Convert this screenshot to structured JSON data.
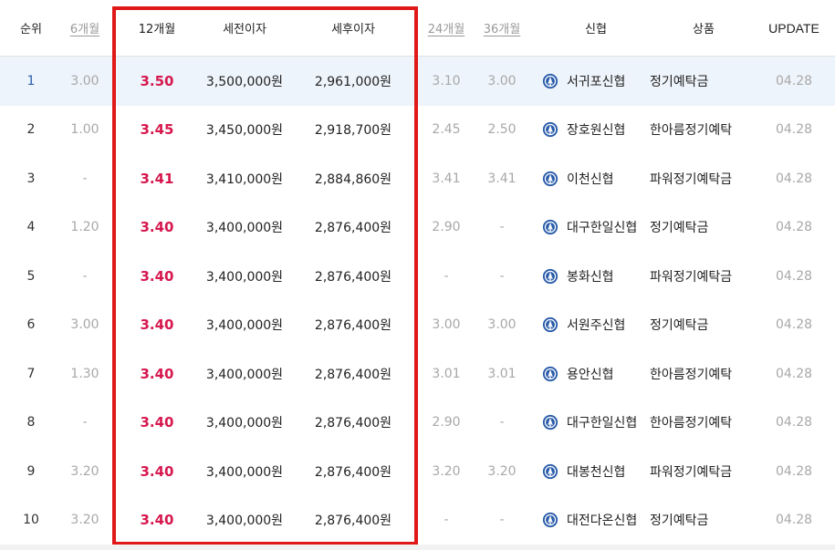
{
  "header": {
    "rank": "순위",
    "m6": "6개월",
    "m12": "12개월",
    "pretax": "세전이자",
    "posttax": "세후이자",
    "m24": "24개월",
    "m36": "36개월",
    "bank": "신협",
    "product": "상품",
    "update": "UPDATE"
  },
  "colors": {
    "accent_red": "#d6184e",
    "highlight_border": "#e01818",
    "row_highlight": "#eef4fb",
    "logo_blue": "#2a5caa"
  },
  "rows": [
    {
      "rank": "1",
      "m6": "3.00",
      "m12": "3.50",
      "pretax": "3,500,000원",
      "posttax": "2,961,000원",
      "m24": "3.10",
      "m36": "3.00",
      "bank": "서귀포신협",
      "product": "정기예탁금",
      "update": "04.28"
    },
    {
      "rank": "2",
      "m6": "1.00",
      "m12": "3.45",
      "pretax": "3,450,000원",
      "posttax": "2,918,700원",
      "m24": "2.45",
      "m36": "2.50",
      "bank": "장호원신협",
      "product": "한아름정기예탁",
      "update": "04.28"
    },
    {
      "rank": "3",
      "m6": "-",
      "m12": "3.41",
      "pretax": "3,410,000원",
      "posttax": "2,884,860원",
      "m24": "3.41",
      "m36": "3.41",
      "bank": "이천신협",
      "product": "파워정기예탁금",
      "update": "04.28"
    },
    {
      "rank": "4",
      "m6": "1.20",
      "m12": "3.40",
      "pretax": "3,400,000원",
      "posttax": "2,876,400원",
      "m24": "2.90",
      "m36": "-",
      "bank": "대구한일신협",
      "product": "정기예탁금",
      "update": "04.28"
    },
    {
      "rank": "5",
      "m6": "-",
      "m12": "3.40",
      "pretax": "3,400,000원",
      "posttax": "2,876,400원",
      "m24": "-",
      "m36": "-",
      "bank": "봉화신협",
      "product": "파워정기예탁금",
      "update": "04.28"
    },
    {
      "rank": "6",
      "m6": "3.00",
      "m12": "3.40",
      "pretax": "3,400,000원",
      "posttax": "2,876,400원",
      "m24": "3.00",
      "m36": "3.00",
      "bank": "서원주신협",
      "product": "정기예탁금",
      "update": "04.28"
    },
    {
      "rank": "7",
      "m6": "1.30",
      "m12": "3.40",
      "pretax": "3,400,000원",
      "posttax": "2,876,400원",
      "m24": "3.01",
      "m36": "3.01",
      "bank": "용안신협",
      "product": "한아름정기예탁",
      "update": "04.28"
    },
    {
      "rank": "8",
      "m6": "-",
      "m12": "3.40",
      "pretax": "3,400,000원",
      "posttax": "2,876,400원",
      "m24": "2.90",
      "m36": "-",
      "bank": "대구한일신협",
      "product": "한아름정기예탁",
      "update": "04.28"
    },
    {
      "rank": "9",
      "m6": "3.20",
      "m12": "3.40",
      "pretax": "3,400,000원",
      "posttax": "2,876,400원",
      "m24": "3.20",
      "m36": "3.20",
      "bank": "대봉천신협",
      "product": "파워정기예탁금",
      "update": "04.28"
    },
    {
      "rank": "10",
      "m6": "3.20",
      "m12": "3.40",
      "pretax": "3,400,000원",
      "posttax": "2,876,400원",
      "m24": "-",
      "m36": "-",
      "bank": "대전다온신협",
      "product": "정기예탁금",
      "update": "04.28"
    }
  ]
}
